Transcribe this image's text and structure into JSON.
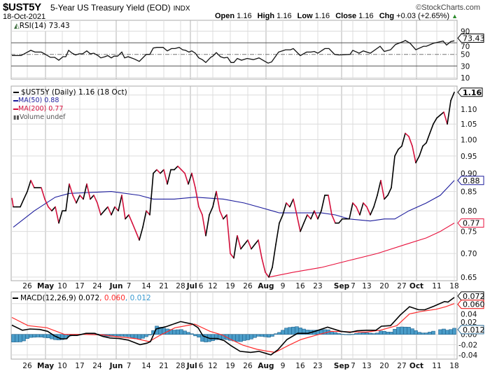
{
  "header": {
    "symbol": "$UST5Y",
    "title": "5-Year US Treasury Yield (EOD)",
    "exchange": "INDX",
    "copyright": "©StockCharts.com",
    "date": "18-Oct-2021",
    "open_label": "Open",
    "open": "1.16",
    "high_label": "High",
    "high": "1.16",
    "low_label": "Low",
    "low": "1.16",
    "close_label": "Close",
    "close": "1.16",
    "chg_label": "Chg",
    "chg": "+0.03 (+2.65%)",
    "chg_icon": "▲"
  },
  "colors": {
    "up": "#000000",
    "down": "#d4103c",
    "ma50": "#1c1c9c",
    "ma200": "#e8103c",
    "signal": "#ff2a2a",
    "hist": "#4a9cc8",
    "hist_border": "#23658f",
    "change_up": "#2a8a2a"
  },
  "rsi_legend": {
    "label": "RSI(14) 73.43"
  },
  "price_legend": {
    "price": "$UST5Y (Daily) 1.16 (18 Oct)",
    "ma50": "MA(50) 0.88",
    "ma200": "MA(200) 0.77",
    "volume": "Volume undef"
  },
  "macd_legend": {
    "macd": "MACD(12,26,9) 0.072",
    "signal": ", 0.060",
    "hist": ", 0.012"
  },
  "chart_data": [
    {
      "type": "line",
      "name": "RSI(14)",
      "y_ticks": [
        "90",
        "70",
        "50",
        "30",
        "10"
      ],
      "ylim": [
        10,
        100
      ],
      "reference_lines": [
        70,
        50,
        30
      ],
      "last_value_tag": "73.43",
      "points": [
        [
          -0.4,
          48
        ],
        [
          2.2,
          48
        ],
        [
          5,
          57
        ],
        [
          6.2,
          54
        ],
        [
          8,
          54
        ],
        [
          9.2,
          50
        ],
        [
          10.6,
          45
        ],
        [
          11.8,
          45
        ],
        [
          13,
          40
        ],
        [
          14.2,
          46
        ],
        [
          15,
          46
        ],
        [
          15.8,
          57
        ],
        [
          16.8,
          52
        ],
        [
          17.8,
          49
        ],
        [
          18.8,
          51
        ],
        [
          19.8,
          51
        ],
        [
          21,
          56
        ],
        [
          22,
          51
        ],
        [
          23,
          52
        ],
        [
          24.2,
          48
        ],
        [
          25,
          44
        ],
        [
          26.2,
          46
        ],
        [
          27,
          48
        ],
        [
          28,
          44
        ],
        [
          28.8,
          47
        ],
        [
          29.8,
          47
        ],
        [
          31,
          54
        ],
        [
          31.8,
          44
        ],
        [
          32.8,
          46
        ],
        [
          34.6,
          42
        ],
        [
          36,
          38
        ],
        [
          38,
          50
        ],
        [
          39,
          50
        ],
        [
          40,
          61
        ],
        [
          41,
          62
        ],
        [
          42.8,
          62
        ],
        [
          44,
          56
        ],
        [
          45.2,
          60
        ],
        [
          46.2,
          60
        ],
        [
          47.4,
          62
        ],
        [
          48.4,
          58
        ],
        [
          49.2,
          57
        ],
        [
          50.2,
          54
        ],
        [
          51,
          56
        ],
        [
          52,
          52
        ],
        [
          53,
          44
        ],
        [
          54,
          41
        ],
        [
          55,
          36
        ],
        [
          56.4,
          45
        ],
        [
          57,
          47
        ],
        [
          58,
          53
        ],
        [
          59.2,
          46
        ],
        [
          60.2,
          44
        ],
        [
          61.2,
          45
        ],
        [
          62.2,
          36
        ],
        [
          63,
          36
        ],
        [
          64,
          43
        ],
        [
          65.2,
          40
        ],
        [
          66.8,
          43
        ],
        [
          68.6,
          41
        ],
        [
          70.2,
          44
        ],
        [
          71.6,
          39
        ],
        [
          72.8,
          35
        ],
        [
          73.8,
          37
        ],
        [
          75.8,
          54
        ],
        [
          77.8,
          58
        ],
        [
          79.2,
          58
        ],
        [
          80,
          60
        ],
        [
          82,
          48
        ],
        [
          83.8,
          54
        ],
        [
          85,
          54
        ],
        [
          86,
          55
        ],
        [
          87,
          52
        ],
        [
          89,
          60
        ],
        [
          90.2,
          60
        ],
        [
          91.8,
          50
        ],
        [
          93,
          49
        ],
        [
          96.2,
          50
        ],
        [
          97,
          57
        ],
        [
          98.8,
          52
        ],
        [
          100,
          56
        ],
        [
          102,
          52
        ],
        [
          104.8,
          64
        ],
        [
          106,
          55
        ],
        [
          107.8,
          58
        ],
        [
          109.2,
          67
        ],
        [
          111.4,
          72
        ],
        [
          112,
          74
        ],
        [
          113.4,
          69
        ],
        [
          115,
          58
        ],
        [
          117.2,
          64
        ],
        [
          118,
          64
        ],
        [
          120,
          69
        ],
        [
          122.8,
          73
        ],
        [
          123.8,
          66
        ],
        [
          125,
          72
        ],
        [
          126,
          73.43
        ]
      ]
    },
    {
      "type": "line",
      "name": "$UST5Y (Daily)",
      "yscale": "log",
      "ylim": [
        0.64,
        1.19
      ],
      "y_ticks": [
        "1.10",
        "1.05",
        "1.00",
        "0.95",
        "0.90",
        "0.85",
        "0.80",
        "0.75",
        "0.70",
        "0.65"
      ],
      "x_ticks": [
        {
          "label": "26",
          "day": 4
        },
        {
          "label": "May",
          "day": 9.2,
          "bold": true
        },
        {
          "label": "10",
          "day": 14
        },
        {
          "label": "17",
          "day": 19
        },
        {
          "label": "24",
          "day": 24
        },
        {
          "label": "Jun",
          "day": 29.4,
          "bold": true
        },
        {
          "label": "7",
          "day": 33
        },
        {
          "label": "14",
          "day": 38
        },
        {
          "label": "21",
          "day": 43
        },
        {
          "label": "28",
          "day": 47.8
        },
        {
          "label": "Jul",
          "day": 50.6,
          "bold": true
        },
        {
          "label": "6",
          "day": 52.6
        },
        {
          "label": "12",
          "day": 57
        },
        {
          "label": "19",
          "day": 62
        },
        {
          "label": "26",
          "day": 67
        },
        {
          "label": "Aug",
          "day": 72.2,
          "bold": true
        },
        {
          "label": "9",
          "day": 77
        },
        {
          "label": "16",
          "day": 82
        },
        {
          "label": "23",
          "day": 87
        },
        {
          "label": "Sep",
          "day": 93.8,
          "bold": true
        },
        {
          "label": "7",
          "day": 97
        },
        {
          "label": "13",
          "day": 101
        },
        {
          "label": "20",
          "day": 106
        },
        {
          "label": "27",
          "day": 111
        },
        {
          "label": "Oct",
          "day": 115.2,
          "bold": true
        },
        {
          "label": "11",
          "day": 121
        },
        {
          "label": "18",
          "day": 126
        }
      ],
      "tags": {
        "close": "1.16",
        "ma50": "0.88",
        "ma200": "0.77"
      },
      "close": [
        0.81,
        0.81,
        0.81,
        0.83,
        0.85,
        0.88,
        0.86,
        0.86,
        0.86,
        0.83,
        0.81,
        0.8,
        0.81,
        0.77,
        0.8,
        0.8,
        0.87,
        0.84,
        0.82,
        0.84,
        0.83,
        0.87,
        0.83,
        0.84,
        0.82,
        0.79,
        0.8,
        0.81,
        0.79,
        0.81,
        0.8,
        0.84,
        0.78,
        0.79,
        0.77,
        0.75,
        0.73,
        0.76,
        0.8,
        0.79,
        0.9,
        0.91,
        0.9,
        0.91,
        0.87,
        0.91,
        0.91,
        0.92,
        0.91,
        0.9,
        0.87,
        0.9,
        0.86,
        0.81,
        0.79,
        0.74,
        0.79,
        0.81,
        0.85,
        0.8,
        0.78,
        0.79,
        0.7,
        0.69,
        0.74,
        0.71,
        0.72,
        0.73,
        0.71,
        0.72,
        0.73,
        0.69,
        0.66,
        0.65,
        0.67,
        0.72,
        0.77,
        0.79,
        0.82,
        0.81,
        0.83,
        0.79,
        0.75,
        0.77,
        0.79,
        0.78,
        0.8,
        0.78,
        0.8,
        0.84,
        0.84,
        0.79,
        0.77,
        0.77,
        0.78,
        0.78,
        0.78,
        0.82,
        0.81,
        0.79,
        0.82,
        0.81,
        0.79,
        0.81,
        0.84,
        0.88,
        0.83,
        0.84,
        0.86,
        0.95,
        0.97,
        0.98,
        1.02,
        1.01,
        0.98,
        0.93,
        0.95,
        0.98,
        0.99,
        1.02,
        1.05,
        1.07,
        1.08,
        1.09,
        1.05,
        1.13,
        1.16
      ],
      "ma50": [
        [
          0,
          0.76
        ],
        [
          6,
          0.8
        ],
        [
          12,
          0.835
        ],
        [
          16,
          0.845
        ],
        [
          28,
          0.85
        ],
        [
          36,
          0.84
        ],
        [
          40,
          0.83
        ],
        [
          46,
          0.83
        ],
        [
          52,
          0.835
        ],
        [
          60,
          0.83
        ],
        [
          66,
          0.82
        ],
        [
          74,
          0.8
        ],
        [
          76,
          0.795
        ],
        [
          88,
          0.795
        ],
        [
          92,
          0.79
        ],
        [
          96,
          0.78
        ],
        [
          102,
          0.775
        ],
        [
          106,
          0.78
        ],
        [
          109,
          0.78
        ],
        [
          113,
          0.8
        ],
        [
          118,
          0.82
        ],
        [
          122,
          0.84
        ],
        [
          126,
          0.88
        ]
      ],
      "ma200": [
        [
          73,
          0.65
        ],
        [
          80,
          0.66
        ],
        [
          88,
          0.67
        ],
        [
          96,
          0.685
        ],
        [
          104,
          0.7
        ],
        [
          112,
          0.72
        ],
        [
          118,
          0.735
        ],
        [
          122,
          0.75
        ],
        [
          126,
          0.77
        ]
      ]
    },
    {
      "type": "line",
      "name": "MACD(12,26,9)",
      "ylim": [
        -0.048,
        0.083
      ],
      "y_ticks": [
        "0.04",
        "0.02",
        "0.00",
        "-0.02",
        "-0.04"
      ],
      "tags": {
        "macd": "0.072",
        "signal": "0.060",
        "hist": "0.012"
      },
      "macd": [
        [
          -0.4,
          0.018
        ],
        [
          2.6,
          0.008
        ],
        [
          4.8,
          0.0105
        ],
        [
          7.6,
          0.0095
        ],
        [
          9.8,
          0.006
        ],
        [
          11.8,
          -0.003
        ],
        [
          13.6,
          -0.0086
        ],
        [
          15.2,
          -0.0086
        ],
        [
          16.2,
          -0.002
        ],
        [
          18.2,
          -0.002
        ],
        [
          20.8,
          0.002
        ],
        [
          23.2,
          0.002
        ],
        [
          25.6,
          -0.004
        ],
        [
          27.6,
          -0.007
        ],
        [
          30.2,
          -0.008
        ],
        [
          32.8,
          -0.011
        ],
        [
          36.2,
          -0.02
        ],
        [
          38.2,
          -0.017
        ],
        [
          39.2,
          -0.014
        ],
        [
          40.8,
          0.0105
        ],
        [
          43.6,
          0.015
        ],
        [
          47.8,
          0.025
        ],
        [
          51.2,
          0.02
        ],
        [
          52.8,
          0.013
        ],
        [
          54.2,
          -0.003
        ],
        [
          56.2,
          -0.008
        ],
        [
          58.2,
          -0.008
        ],
        [
          60.2,
          -0.012
        ],
        [
          62.2,
          -0.022
        ],
        [
          64.8,
          -0.033
        ],
        [
          67.8,
          -0.035
        ],
        [
          70.2,
          -0.033
        ],
        [
          73.6,
          -0.04
        ],
        [
          75.6,
          -0.03
        ],
        [
          78.2,
          -0.01
        ],
        [
          81.2,
          0.002
        ],
        [
          84.2,
          0.002
        ],
        [
          86.2,
          0.006
        ],
        [
          89.8,
          0.014
        ],
        [
          93.6,
          0.006
        ],
        [
          96.2,
          0.004
        ],
        [
          98.2,
          0.007
        ],
        [
          100.8,
          0.008
        ],
        [
          103.6,
          0.008
        ],
        [
          105.2,
          0.016
        ],
        [
          107.8,
          0.017
        ],
        [
          110.6,
          0.038
        ],
        [
          113.2,
          0.054
        ],
        [
          115.8,
          0.048
        ],
        [
          117.6,
          0.048
        ],
        [
          120.2,
          0.055
        ],
        [
          123.2,
          0.064
        ],
        [
          124.2,
          0.063
        ],
        [
          126,
          0.072
        ]
      ],
      "signal": [
        [
          -0.4,
          0.033
        ],
        [
          4.2,
          0.017
        ],
        [
          9.6,
          0.013
        ],
        [
          14.6,
          0.0
        ],
        [
          20.2,
          0.0
        ],
        [
          25.6,
          -0.001
        ],
        [
          30.2,
          -0.005
        ],
        [
          34.8,
          -0.008
        ],
        [
          38.8,
          -0.014
        ],
        [
          41.6,
          -0.003
        ],
        [
          46.2,
          0.013
        ],
        [
          51.8,
          0.02
        ],
        [
          56.2,
          0.006
        ],
        [
          59.6,
          -0.001
        ],
        [
          62.2,
          -0.01
        ],
        [
          65.6,
          -0.021
        ],
        [
          69.6,
          -0.029
        ],
        [
          72.8,
          -0.033
        ],
        [
          74.8,
          -0.035
        ],
        [
          78.8,
          -0.021
        ],
        [
          82.2,
          -0.01
        ],
        [
          86.8,
          -0.001
        ],
        [
          90.8,
          0.006
        ],
        [
          95.6,
          0.005
        ],
        [
          100.8,
          0.0045
        ],
        [
          104.8,
          0.008
        ],
        [
          109.6,
          0.017
        ],
        [
          113.2,
          0.04
        ],
        [
          116.8,
          0.045
        ],
        [
          120.8,
          0.049
        ],
        [
          123.6,
          0.054
        ],
        [
          126,
          0.06
        ]
      ]
    }
  ]
}
